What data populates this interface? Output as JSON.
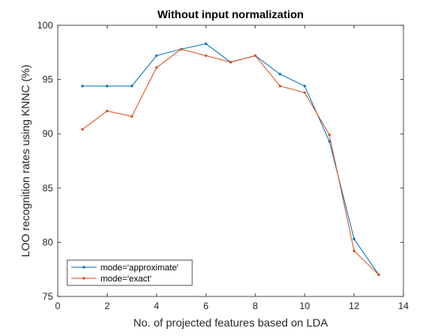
{
  "chart_data": {
    "type": "line",
    "title": "Without input normalization",
    "xlabel": "No. of projected features based on LDA",
    "ylabel": "LOO recognition rates using KNNC (%)",
    "xlim": [
      0,
      14
    ],
    "ylim": [
      75,
      100
    ],
    "xticks": [
      0,
      2,
      4,
      6,
      8,
      10,
      12,
      14
    ],
    "yticks": [
      75,
      80,
      85,
      90,
      95,
      100
    ],
    "grid": false,
    "legend_position": "bottom-left",
    "x": [
      1,
      2,
      3,
      4,
      5,
      6,
      7,
      8,
      9,
      10,
      11,
      12,
      13
    ],
    "series": [
      {
        "name": "mode='approximate'",
        "color": "#0072BD",
        "values": [
          94.4,
          94.4,
          94.4,
          97.2,
          97.8,
          98.3,
          96.6,
          97.2,
          95.5,
          94.4,
          89.3,
          80.3,
          77.0
        ]
      },
      {
        "name": "mode='exact'",
        "color": "#D95319",
        "values": [
          90.4,
          92.1,
          91.6,
          96.1,
          97.8,
          97.2,
          96.6,
          97.2,
          94.4,
          93.8,
          89.9,
          79.2,
          77.0
        ]
      }
    ]
  }
}
